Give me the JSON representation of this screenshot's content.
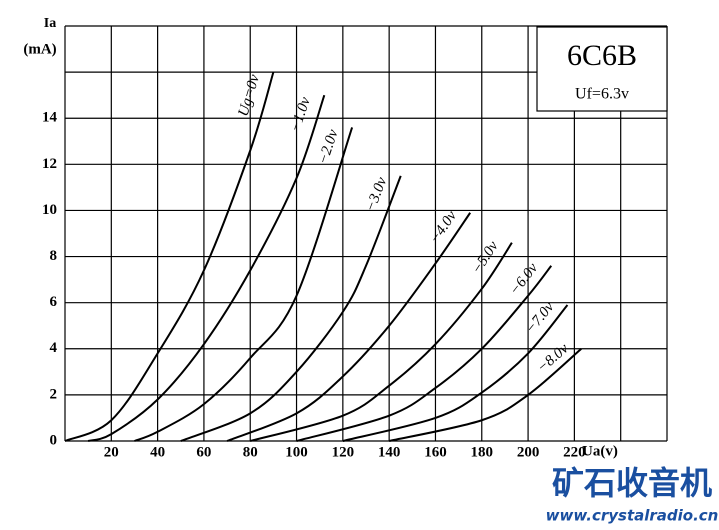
{
  "chart_data": {
    "type": "line",
    "title": "6C6B",
    "subtitle": "Uf=6.3v",
    "y_label": "Ia",
    "y_unit": "(mA)",
    "x_label": "Ua(v)",
    "xlim": [
      0,
      260
    ],
    "ylim": [
      0,
      18
    ],
    "xticks": [
      20,
      40,
      60,
      80,
      100,
      120,
      140,
      160,
      180,
      200,
      220
    ],
    "yticks": [
      0,
      2,
      4,
      6,
      8,
      10,
      12,
      14
    ],
    "xgrid": [
      0,
      20,
      40,
      60,
      80,
      100,
      120,
      140,
      160,
      180,
      200,
      220,
      240,
      260
    ],
    "ygrid": [
      0,
      2,
      4,
      6,
      8,
      10,
      12,
      14,
      16,
      18
    ],
    "grid": true,
    "series": [
      {
        "name": "Ug=0v",
        "color": "#000000",
        "x": [
          0,
          20,
          40,
          60,
          80,
          90
        ],
        "values": [
          0,
          0.9,
          3.8,
          7.4,
          12.6,
          16
        ]
      },
      {
        "name": "−1.0v",
        "color": "#000000",
        "x": [
          10,
          20,
          40,
          60,
          80,
          100,
          112
        ],
        "values": [
          0,
          0.3,
          1.8,
          4.2,
          7.4,
          11.4,
          15
        ]
      },
      {
        "name": "−2.0v",
        "color": "#000000",
        "x": [
          30,
          40,
          60,
          80,
          100,
          124
        ],
        "values": [
          0,
          0.4,
          1.6,
          3.6,
          6.3,
          13.6
        ]
      },
      {
        "name": "−3.0v",
        "color": "#000000",
        "x": [
          50,
          80,
          100,
          120,
          130,
          145
        ],
        "values": [
          0,
          1.2,
          3,
          5.6,
          7.6,
          11.5
        ]
      },
      {
        "name": "−4.0v",
        "color": "#000000",
        "x": [
          70,
          100,
          120,
          140,
          160,
          175
        ],
        "values": [
          0,
          1.2,
          2.8,
          5,
          7.7,
          9.9
        ]
      },
      {
        "name": "−5.0v",
        "color": "#000000",
        "x": [
          80,
          120,
          140,
          160,
          180,
          193
        ],
        "values": [
          0,
          1.1,
          2.4,
          4.2,
          6.6,
          8.6
        ]
      },
      {
        "name": "−6.0v",
        "color": "#000000",
        "x": [
          100,
          140,
          160,
          180,
          200,
          210
        ],
        "values": [
          0,
          1.1,
          2.3,
          4,
          6.3,
          7.6
        ]
      },
      {
        "name": "−7.0v",
        "color": "#000000",
        "x": [
          120,
          160,
          180,
          200,
          217
        ],
        "values": [
          0,
          1,
          2.1,
          3.8,
          5.9
        ]
      },
      {
        "name": "−8.0v",
        "color": "#000000",
        "x": [
          140,
          180,
          200,
          223
        ],
        "values": [
          0,
          0.9,
          2,
          4
        ]
      }
    ]
  },
  "watermark": {
    "name": "矿石收音机",
    "url": "www.crystalradio.cn"
  }
}
